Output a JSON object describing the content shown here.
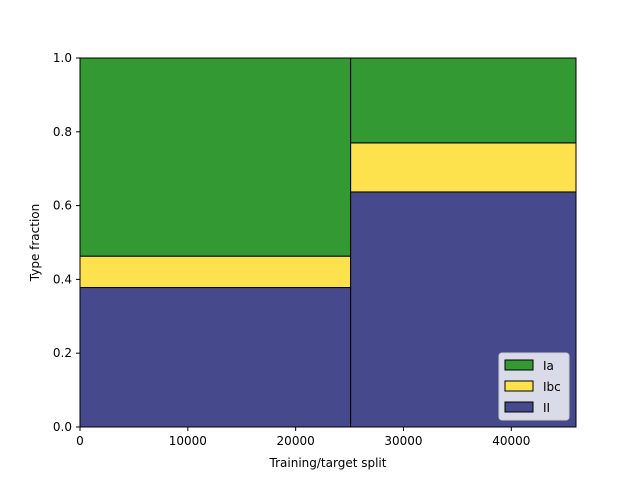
{
  "chart_data": {
    "type": "bar",
    "subtype": "stacked-variable-width",
    "title": "",
    "xlabel": "Training/target split",
    "ylabel": "Type fraction",
    "xlim": [
      0,
      46000
    ],
    "ylim": [
      0,
      1
    ],
    "xticks": [
      0,
      10000,
      20000,
      30000,
      40000
    ],
    "yticks": [
      0.0,
      0.2,
      0.4,
      0.6,
      0.8,
      1.0
    ],
    "ytick_labels": [
      "0.0",
      "0.2",
      "0.4",
      "0.6",
      "0.8",
      "1.0"
    ],
    "bins": [
      {
        "x0": 0,
        "x1": 25100
      },
      {
        "x0": 25100,
        "x1": 46000
      }
    ],
    "series": [
      {
        "name": "II",
        "color": "#464a8c",
        "values": [
          0.378,
          0.637
        ]
      },
      {
        "name": "Ibc",
        "color": "#fde14d",
        "values": [
          0.085,
          0.133
        ]
      },
      {
        "name": "Ia",
        "color": "#339933",
        "values": [
          0.537,
          0.23
        ]
      }
    ],
    "legend": {
      "placement": "lower-right",
      "order": [
        "Ia",
        "Ibc",
        "II"
      ]
    },
    "grid": false
  }
}
